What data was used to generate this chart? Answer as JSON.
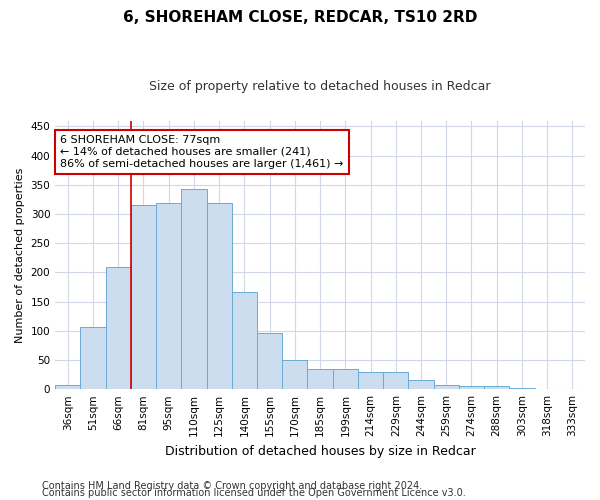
{
  "title": "6, SHOREHAM CLOSE, REDCAR, TS10 2RD",
  "subtitle": "Size of property relative to detached houses in Redcar",
  "xlabel": "Distribution of detached houses by size in Redcar",
  "ylabel": "Number of detached properties",
  "categories": [
    "36sqm",
    "51sqm",
    "66sqm",
    "81sqm",
    "95sqm",
    "110sqm",
    "125sqm",
    "140sqm",
    "155sqm",
    "170sqm",
    "185sqm",
    "199sqm",
    "214sqm",
    "229sqm",
    "244sqm",
    "259sqm",
    "274sqm",
    "288sqm",
    "303sqm",
    "318sqm",
    "333sqm"
  ],
  "values": [
    7,
    106,
    210,
    316,
    318,
    343,
    318,
    166,
    97,
    50,
    35,
    35,
    29,
    29,
    15,
    8,
    5,
    5,
    2,
    1,
    1
  ],
  "bar_color": "#ccddf0",
  "bar_edge_color": "#6aaad4",
  "grid_color": "#d0d8e8",
  "vline_pos": 2.5,
  "vline_color": "#cc0000",
  "annotation_text": "6 SHOREHAM CLOSE: 77sqm\n← 14% of detached houses are smaller (241)\n86% of semi-detached houses are larger (1,461) →",
  "annotation_box_color": "#ffffff",
  "annotation_box_edge": "#cc0000",
  "footer1": "Contains HM Land Registry data © Crown copyright and database right 2024.",
  "footer2": "Contains public sector information licensed under the Open Government Licence v3.0.",
  "ylim": [
    0,
    460
  ],
  "yticks": [
    0,
    50,
    100,
    150,
    200,
    250,
    300,
    350,
    400,
    450
  ],
  "title_fontsize": 11,
  "subtitle_fontsize": 9,
  "xlabel_fontsize": 9,
  "ylabel_fontsize": 8,
  "tick_fontsize": 7.5,
  "annot_fontsize": 8,
  "footer_fontsize": 7
}
